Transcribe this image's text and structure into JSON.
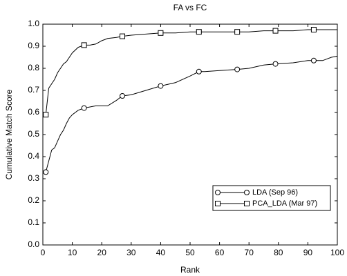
{
  "chart_data": {
    "type": "line",
    "title": "FA vs FC",
    "xlabel": "Rank",
    "ylabel": "Cumulative Match Score",
    "x": [
      1,
      2,
      3,
      4,
      5,
      6,
      7,
      8,
      9,
      10,
      12,
      14,
      16,
      18,
      20,
      22,
      25,
      27,
      30,
      35,
      40,
      45,
      50,
      53,
      55,
      60,
      66,
      70,
      75,
      79,
      85,
      90,
      92,
      95,
      98,
      100
    ],
    "series": [
      {
        "name": "LDA (Sep 96)",
        "color": "#000000",
        "marker": "circle",
        "values": [
          0.33,
          0.38,
          0.43,
          0.44,
          0.47,
          0.5,
          0.52,
          0.55,
          0.575,
          0.59,
          0.61,
          0.62,
          0.625,
          0.63,
          0.63,
          0.63,
          0.655,
          0.675,
          0.68,
          0.7,
          0.72,
          0.735,
          0.765,
          0.785,
          0.785,
          0.79,
          0.795,
          0.8,
          0.815,
          0.82,
          0.825,
          0.835,
          0.835,
          0.835,
          0.85,
          0.855
        ]
      },
      {
        "name": "PCA_LDA (Mar 97)",
        "color": "#000000",
        "marker": "square",
        "values": [
          0.59,
          0.71,
          0.73,
          0.75,
          0.78,
          0.8,
          0.82,
          0.83,
          0.85,
          0.87,
          0.895,
          0.905,
          0.905,
          0.91,
          0.925,
          0.935,
          0.94,
          0.945,
          0.95,
          0.955,
          0.96,
          0.96,
          0.965,
          0.965,
          0.965,
          0.965,
          0.965,
          0.965,
          0.97,
          0.97,
          0.97,
          0.975,
          0.975,
          0.975,
          0.975,
          0.975
        ]
      }
    ],
    "marker_x": [
      1,
      14,
      27,
      40,
      53,
      66,
      79,
      92
    ],
    "xlim": [
      0,
      100
    ],
    "xticks": [
      0,
      10,
      20,
      30,
      40,
      50,
      60,
      70,
      80,
      90,
      100
    ],
    "ylim": [
      0,
      1
    ],
    "yticks": [
      {
        "value": 0,
        "label": "0.0"
      },
      0.1,
      0.2,
      0.3,
      0.4,
      0.5,
      0.6,
      0.7,
      0.8,
      0.9,
      {
        "value": 1,
        "label": "1.0"
      }
    ],
    "grid": false,
    "legend": "lower right"
  }
}
